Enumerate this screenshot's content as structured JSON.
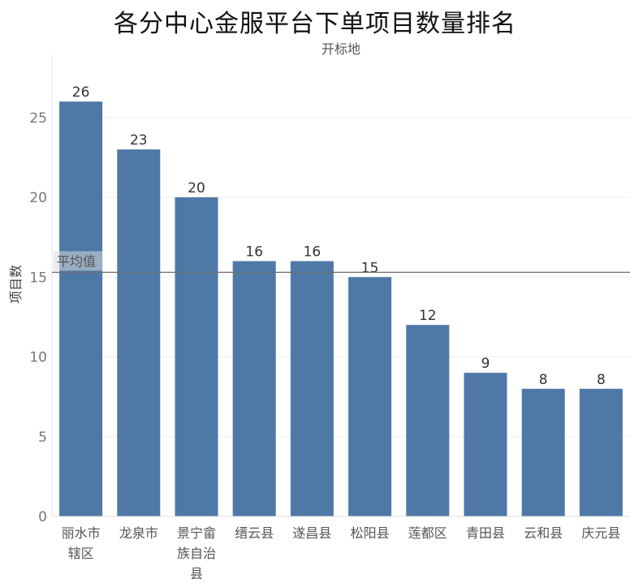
{
  "chart_data": {
    "type": "bar",
    "title": "各分中心金服平台下单项目数量排名",
    "xlabel": "开标地",
    "ylabel": "项目数",
    "categories": [
      [
        "丽水市",
        "辖区"
      ],
      [
        "龙泉市"
      ],
      [
        "景宁畲",
        "族自治",
        "县"
      ],
      [
        "缙云县"
      ],
      [
        "遂昌县"
      ],
      [
        "松阳县"
      ],
      [
        "莲都区"
      ],
      [
        "青田县"
      ],
      [
        "云和县"
      ],
      [
        "庆元县"
      ]
    ],
    "values": [
      26,
      23,
      20,
      16,
      16,
      15,
      12,
      9,
      8,
      8
    ],
    "ylim": [
      0,
      29
    ],
    "yticks": [
      0,
      5,
      10,
      15,
      20,
      25
    ],
    "grid": true,
    "bar_color": "#4e79a7",
    "reference_line": {
      "label": "平均值",
      "value": 15.3
    }
  }
}
